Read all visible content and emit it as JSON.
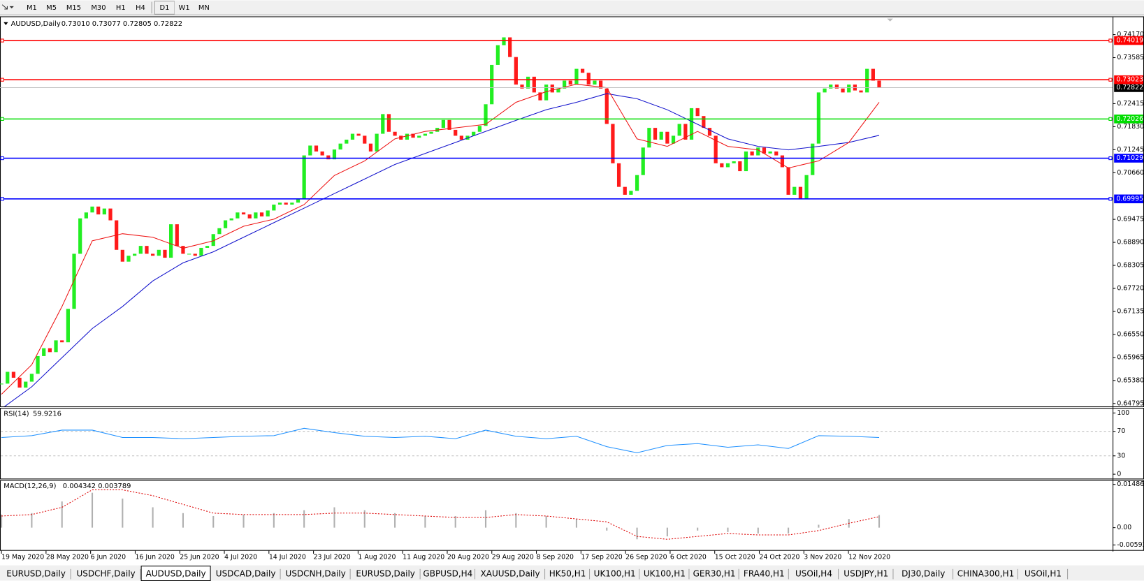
{
  "toolbar": {
    "timeframes": [
      "M1",
      "M5",
      "M15",
      "M30",
      "H1",
      "H4",
      "D1",
      "W1",
      "MN"
    ]
  },
  "chart": {
    "symbol": "AUDUSD,Daily",
    "ohlc": "0.73010 0.73077 0.72805 0.72822",
    "ylim": [
      0.64795,
      0.7417
    ],
    "yticks": [
      {
        "value": 0.7417,
        "label": "0.74170"
      },
      {
        "value": 0.73585,
        "label": "0.73585"
      },
      {
        "value": 0.72415,
        "label": "0.72415"
      },
      {
        "value": 0.7183,
        "label": "0.71830"
      },
      {
        "value": 0.71245,
        "label": "0.71245"
      },
      {
        "value": 0.7066,
        "label": "0.70660"
      },
      {
        "value": 0.69475,
        "label": "0.69475"
      },
      {
        "value": 0.6889,
        "label": "0.68890"
      },
      {
        "value": 0.68305,
        "label": "0.68305"
      },
      {
        "value": 0.6772,
        "label": "0.67720"
      },
      {
        "value": 0.67135,
        "label": "0.67135"
      },
      {
        "value": 0.6655,
        "label": "0.66550"
      },
      {
        "value": 0.65965,
        "label": "0.65965"
      },
      {
        "value": 0.6538,
        "label": "0.65380"
      },
      {
        "value": 0.64795,
        "label": "0.64795"
      }
    ],
    "levels": [
      {
        "value": 0.74019,
        "label": "0.74019",
        "color": "#ff0000"
      },
      {
        "value": 0.73023,
        "label": "0.73023",
        "color": "#ff0000"
      },
      {
        "value": 0.72026,
        "label": "0.72026",
        "color": "#00dd00"
      },
      {
        "value": 0.71029,
        "label": "0.71029",
        "color": "#0000ff"
      },
      {
        "value": 0.69995,
        "label": "0.69995",
        "color": "#0000ff"
      }
    ],
    "current_price": {
      "value": 0.72822,
      "label": "0.72822"
    },
    "up_color": "#22ee22",
    "down_color": "#ff1a1a",
    "closes": [
      0.653,
      0.656,
      0.6545,
      0.652,
      0.6535,
      0.6555,
      0.66,
      0.662,
      0.661,
      0.664,
      0.6635,
      0.672,
      0.686,
      0.695,
      0.6965,
      0.698,
      0.696,
      0.6975,
      0.6945,
      0.687,
      0.684,
      0.6855,
      0.686,
      0.688,
      0.686,
      0.6855,
      0.687,
      0.685,
      0.6935,
      0.688,
      0.686,
      0.686,
      0.6855,
      0.6875,
      0.688,
      0.691,
      0.6925,
      0.6945,
      0.695,
      0.6965,
      0.696,
      0.695,
      0.6965,
      0.6955,
      0.697,
      0.6985,
      0.699,
      0.6985,
      0.699,
      0.7,
      0.711,
      0.7135,
      0.712,
      0.711,
      0.71,
      0.7125,
      0.714,
      0.715,
      0.7165,
      0.716,
      0.714,
      0.712,
      0.7165,
      0.7215,
      0.717,
      0.716,
      0.715,
      0.7165,
      0.7155,
      0.716,
      0.7165,
      0.717,
      0.718,
      0.72,
      0.7175,
      0.716,
      0.715,
      0.716,
      0.717,
      0.7185,
      0.724,
      0.734,
      0.739,
      0.741,
      0.736,
      0.729,
      0.728,
      0.731,
      0.727,
      0.725,
      0.729,
      0.727,
      0.728,
      0.73,
      0.729,
      0.733,
      0.732,
      0.729,
      0.73,
      0.728,
      0.719,
      0.709,
      0.703,
      0.701,
      0.702,
      0.706,
      0.713,
      0.718,
      0.715,
      0.717,
      0.714,
      0.716,
      0.719,
      0.715,
      0.723,
      0.721,
      0.718,
      0.716,
      0.709,
      0.708,
      0.709,
      0.7095,
      0.707,
      0.712,
      0.711,
      0.713,
      0.7115,
      0.712,
      0.711,
      0.708,
      0.701,
      0.703,
      0.7,
      0.706,
      0.714,
      0.727,
      0.728,
      0.729,
      0.728,
      0.727,
      0.729,
      0.7275,
      0.727,
      0.733,
      0.73,
      0.7282
    ],
    "ma_fast": {
      "color": "#ee1111",
      "values": [
        0.6503,
        0.6578,
        0.6726,
        0.6893,
        0.6911,
        0.6902,
        0.6874,
        0.6893,
        0.693,
        0.6948,
        0.6985,
        0.7059,
        0.7096,
        0.7152,
        0.7171,
        0.718,
        0.7189,
        0.7245,
        0.7272,
        0.7291,
        0.7282,
        0.7152,
        0.7133,
        0.7171,
        0.7133,
        0.7124,
        0.7078,
        0.7096,
        0.7143,
        0.7245
      ]
    },
    "ma_slow": {
      "color": "#1111cc",
      "values": [
        0.6466,
        0.6522,
        0.6596,
        0.667,
        0.6726,
        0.6791,
        0.6837,
        0.6865,
        0.6902,
        0.6939,
        0.6976,
        0.7013,
        0.705,
        0.7087,
        0.7115,
        0.7143,
        0.7171,
        0.7199,
        0.7226,
        0.7245,
        0.7267,
        0.7254,
        0.7226,
        0.7189,
        0.7152,
        0.7133,
        0.7124,
        0.7133,
        0.7143,
        0.7161
      ]
    }
  },
  "rsi": {
    "title": "RSI(14)",
    "value": "59.9216",
    "color": "#1e90ff",
    "ylim": [
      0,
      100
    ],
    "yticks": [
      100,
      70,
      30,
      0
    ],
    "levels": [
      70,
      30
    ],
    "values": [
      60,
      63,
      72,
      72,
      60,
      60,
      58,
      60,
      62,
      63,
      75,
      68,
      62,
      60,
      62,
      58,
      72,
      62,
      58,
      62,
      45,
      35,
      47,
      50,
      44,
      48,
      42,
      63,
      62,
      60
    ]
  },
  "macd": {
    "title": "MACD(12,26,9)",
    "value": "0.004342 0.003789",
    "ylim": [
      -0.005938,
      0.014861
    ],
    "yticks": [
      0.014861,
      {
        "value": 0,
        "label": "0.00"
      },
      -0.005938
    ],
    "histogram_color": "#b0b0b0",
    "signal_color": "#dd0000",
    "histogram": [
      0.0045,
      0.005,
      0.009,
      0.012,
      0.01,
      0.007,
      0.005,
      0.004,
      0.0045,
      0.005,
      0.006,
      0.007,
      0.006,
      0.005,
      0.004,
      0.004,
      0.006,
      0.005,
      0.004,
      0.003,
      -0.001,
      -0.004,
      -0.003,
      -0.001,
      -0.0015,
      -0.002,
      -0.002,
      0.001,
      0.003,
      0.004342
    ],
    "signal": [
      0.004,
      0.0045,
      0.007,
      0.013,
      0.013,
      0.011,
      0.008,
      0.005,
      0.0045,
      0.0045,
      0.0045,
      0.005,
      0.005,
      0.0045,
      0.004,
      0.0035,
      0.0035,
      0.0045,
      0.004,
      0.003,
      0.002,
      -0.003,
      -0.004,
      -0.003,
      -0.002,
      -0.0025,
      -0.0025,
      -0.001,
      0.0015,
      0.003789
    ]
  },
  "dates": [
    "19 May 2020",
    "28 May 2020",
    "6 Jun 2020",
    "16 Jun 2020",
    "25 Jun 2020",
    "4 Jul 2020",
    "14 Jul 2020",
    "23 Jul 2020",
    "1 Aug 2020",
    "11 Aug 2020",
    "20 Aug 2020",
    "29 Aug 2020",
    "8 Sep 2020",
    "17 Sep 2020",
    "26 Sep 2020",
    "6 Oct 2020",
    "15 Oct 2020",
    "24 Oct 2020",
    "3 Nov 2020",
    "12 Nov 2020"
  ],
  "tabs": {
    "active": 2,
    "items": [
      "EURUSD,Daily",
      "USDCHF,Daily",
      "AUDUSD,Daily",
      "USDCAD,Daily",
      "USDCNH,Daily",
      "EURUSD,Daily",
      "GBPUSD,H4",
      "XAUUSD,Daily",
      "HK50,H1",
      "UK100,H1",
      "UK100,H1",
      "GER30,H1",
      "FRA40,H1",
      "USOil,H4",
      "USDJPY,H1",
      "DJ30,Daily",
      "CHINA300,H1",
      "USOil,H1"
    ]
  }
}
